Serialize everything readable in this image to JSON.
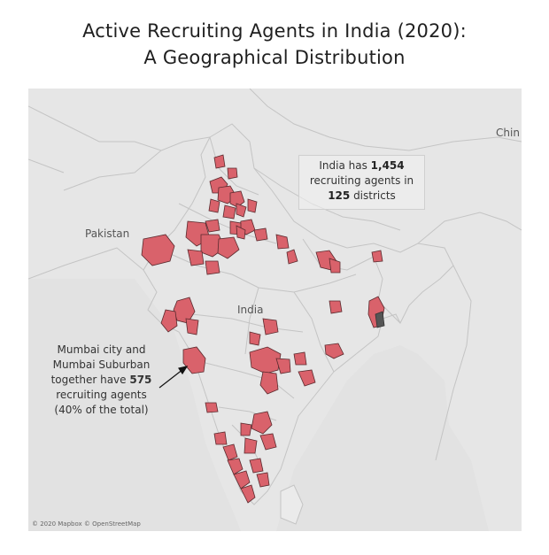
{
  "title": {
    "line1": "Active Recruiting Agents in India (2020):",
    "line2": "A Geographical Distribution"
  },
  "map": {
    "labels": {
      "pakistan": "Pakistan",
      "india": "India",
      "china": "Chin"
    },
    "colors": {
      "background": "#e6e6e6",
      "land": "#e9e9e9",
      "border": "#c8c8c8",
      "district_fill": "#d9626b",
      "district_stroke": "#5a2a2e",
      "highlight_fill": "#555555"
    },
    "attribution": "© 2020 Mapbox © OpenStreetMap"
  },
  "callout_total": {
    "line1_prefix": "India has ",
    "agents": "1,454",
    "line2": "recruiting agents in",
    "districts": "125",
    "line3_suffix": " districts"
  },
  "callout_mumbai": {
    "line1": "Mumbai city and",
    "line2": "Mumbai Suburban",
    "line3_prefix": "together have ",
    "count": "575",
    "line4": "recruiting agents",
    "line5": "(40% of the total)"
  }
}
